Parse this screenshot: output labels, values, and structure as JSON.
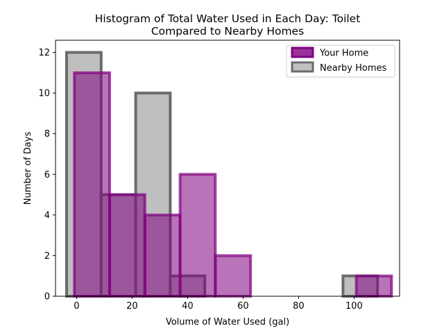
{
  "chart_data": {
    "type": "bar",
    "title_line1": "Histogram of Total Water Used in Each Day: Toilet",
    "title_line2": "Compared to Nearby Homes",
    "xlabel": "Volume of Water Used (gal)",
    "ylabel": "Number of Days",
    "xlim": [
      -7.6,
      116.4
    ],
    "ylim": [
      0,
      12.6
    ],
    "xticks": [
      0,
      20,
      40,
      60,
      80,
      100
    ],
    "yticks": [
      0,
      2,
      4,
      6,
      8,
      10,
      12
    ],
    "legend_position": "top-right",
    "series": [
      {
        "name": "Nearby Homes",
        "fill": "#bfbfbf",
        "edge": "#6b6b6b",
        "bin_edges": [
          -3.6,
          8.85,
          21.3,
          33.75,
          46.2,
          58.65,
          71.1,
          83.55,
          96.0,
          108.45
        ],
        "counts": [
          12,
          5,
          10,
          1,
          0,
          0,
          0,
          0,
          1
        ]
      },
      {
        "name": "Your Home",
        "fill": "#800080",
        "edge": "#800080",
        "bin_edges": [
          -0.8,
          11.9,
          24.6,
          37.3,
          50.0,
          62.7,
          75.4,
          88.1,
          100.8,
          113.5
        ],
        "counts": [
          11,
          5,
          4,
          6,
          2,
          0,
          0,
          0,
          1
        ]
      }
    ]
  }
}
